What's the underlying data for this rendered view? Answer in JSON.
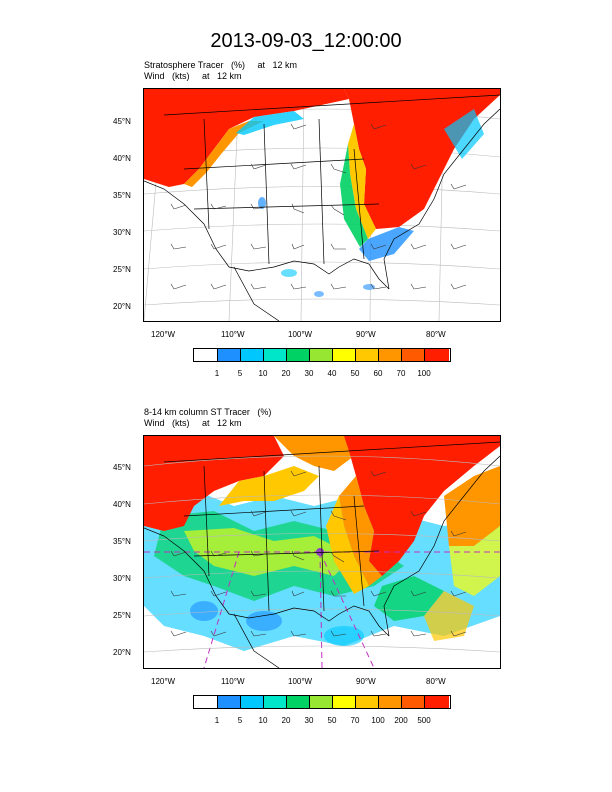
{
  "title": "2013-09-03_12:00:00",
  "panels": [
    {
      "subtitle_line1": "Stratosphere Tracer   (%)     at   12 km",
      "subtitle_line2": "Wind   (kts)     at   12 km",
      "lat_labels": [
        "45°N",
        "40°N",
        "35°N",
        "30°N",
        "25°N",
        "20°N"
      ],
      "lon_labels": [
        "120°W",
        "110°W",
        "100°W",
        "90°W",
        "80°W"
      ],
      "legend_labels": [
        "1",
        "5",
        "10",
        "20",
        "30",
        "40",
        "50",
        "60",
        "70",
        "100"
      ],
      "legend_colors": [
        "#ffffff",
        "#1e90ff",
        "#00c8ff",
        "#00e6c8",
        "#00d264",
        "#96e632",
        "#ffff00",
        "#ffc800",
        "#ff9600",
        "#ff5a00",
        "#ff1e00"
      ]
    },
    {
      "subtitle_line1": "8-14 km column ST Tracer   (%)",
      "subtitle_line2": "Wind   (kts)     at   12 km",
      "lat_labels": [
        "45°N",
        "40°N",
        "35°N",
        "30°N",
        "25°N",
        "20°N"
      ],
      "lon_labels": [
        "120°W",
        "110°W",
        "100°W",
        "90°W",
        "80°W"
      ],
      "legend_labels": [
        "1",
        "5",
        "10",
        "20",
        "30",
        "50",
        "70",
        "100",
        "200",
        "500"
      ],
      "legend_colors": [
        "#ffffff",
        "#1e90ff",
        "#00c8ff",
        "#00e6c8",
        "#00d264",
        "#96e632",
        "#ffff00",
        "#ffc800",
        "#ff9600",
        "#ff5a00",
        "#ff1e00"
      ]
    }
  ]
}
